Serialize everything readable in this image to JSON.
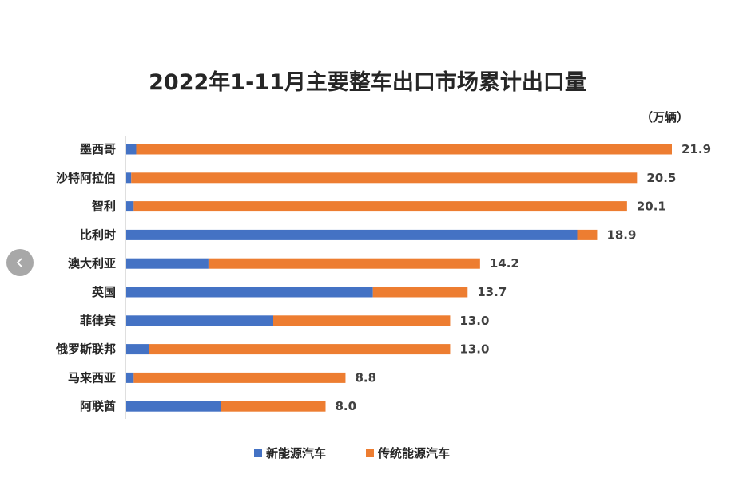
{
  "chart_data": {
    "type": "bar",
    "orientation": "horizontal",
    "stacked": true,
    "title": "2022年1-11月主要整车出口市场累计出口量",
    "unit": "（万辆）",
    "categories": [
      "墨西哥",
      "沙特阿拉伯",
      "智利",
      "比利时",
      "澳大利亚",
      "英国",
      "菲律宾",
      "俄罗斯联邦",
      "马来西亚",
      "阿联酋"
    ],
    "totals": [
      "21.9",
      "20.5",
      "20.1",
      "18.9",
      "14.2",
      "13.7",
      "13.0",
      "13.0",
      "8.8",
      "8.0"
    ],
    "series": [
      {
        "name": "新能源汽车",
        "color": "#4472C4",
        "values": [
          0.4,
          0.2,
          0.3,
          18.1,
          3.3,
          9.9,
          5.9,
          0.9,
          0.3,
          3.8
        ]
      },
      {
        "name": "传统能源汽车",
        "color": "#ED7D31",
        "values": [
          21.5,
          20.3,
          19.8,
          0.8,
          10.9,
          3.8,
          7.1,
          12.1,
          8.5,
          4.2
        ]
      }
    ],
    "xlim": [
      0,
      21.9
    ],
    "grid": false,
    "legend_position": "bottom"
  },
  "nav": {
    "prev_icon": "chevron-left-icon"
  }
}
